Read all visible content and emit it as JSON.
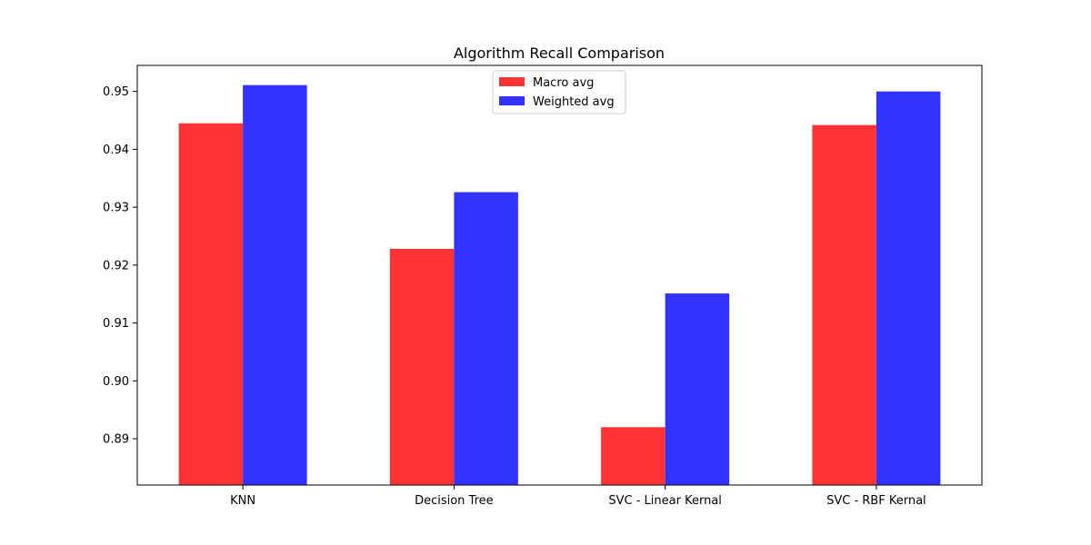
{
  "chart_data": {
    "type": "bar",
    "title": "Algorithm Recall Comparison",
    "xlabel": "",
    "ylabel": "",
    "categories": [
      "KNN",
      "Decision Tree",
      "SVC - Linear Kernal",
      "SVC - RBF Kernal"
    ],
    "series": [
      {
        "name": "Macro avg",
        "color": "#ff3333",
        "values": [
          0.9445,
          0.9228,
          0.892,
          0.9442
        ]
      },
      {
        "name": "Weighted avg",
        "color": "#3333ff",
        "values": [
          0.9511,
          0.9326,
          0.9151,
          0.95
        ]
      }
    ],
    "ylim": [
      0.882,
      0.9545
    ],
    "yticks": [
      0.89,
      0.9,
      0.91,
      0.92,
      0.93,
      0.94,
      0.95
    ],
    "ytick_labels": [
      "0.89",
      "0.90",
      "0.91",
      "0.92",
      "0.93",
      "0.94",
      "0.95"
    ],
    "grid": false,
    "legend_position": "top-center"
  }
}
